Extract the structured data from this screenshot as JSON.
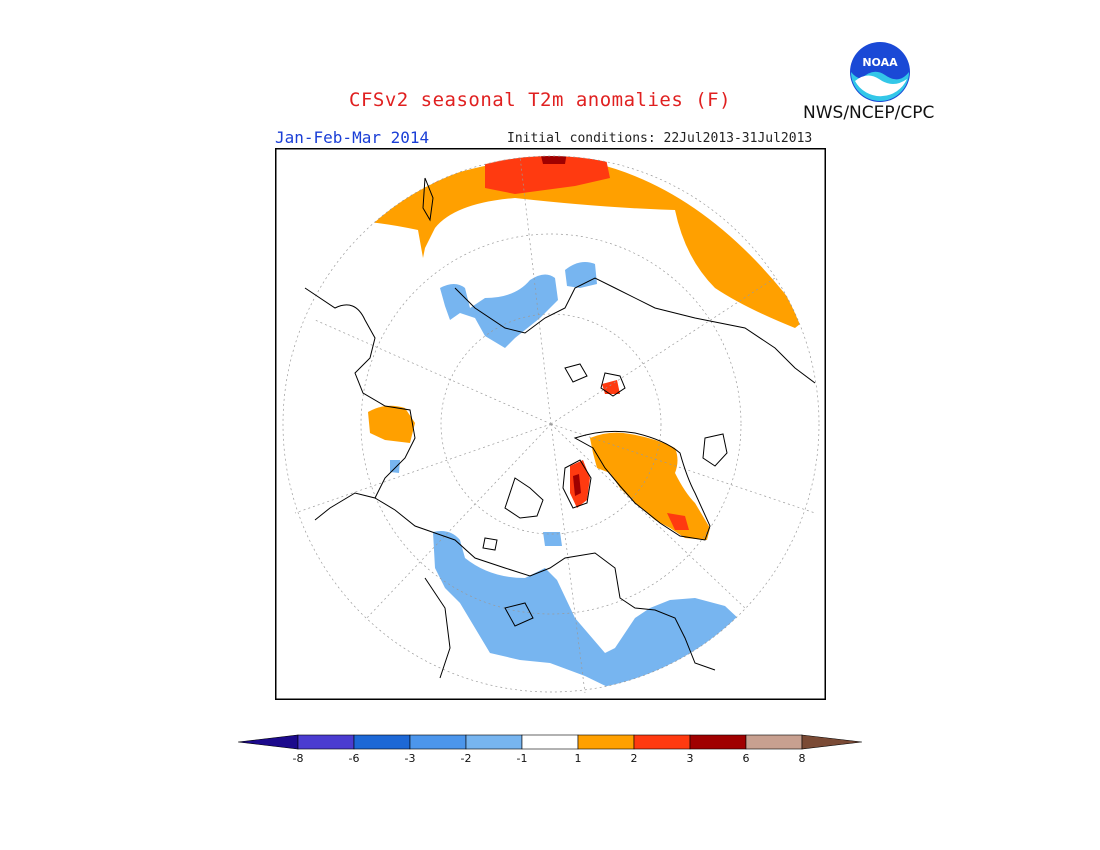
{
  "header": {
    "title": "CFSv2 seasonal T2m anomalies (F)",
    "season": "Jan-Feb-Mar 2014",
    "initial_conditions": "Initial conditions: 22Jul2013-31Jul2013",
    "agency": "NWS/NCEP/CPC",
    "logo_text": "NOAA"
  },
  "colors": {
    "title": "#e02020",
    "season": "#1a3ed6",
    "cold_light": "#77b5f0",
    "warm_1": "#ffa000",
    "warm_2": "#ff3a10",
    "warm_3": "#a00000"
  },
  "legend": {
    "bins": [
      {
        "color": "#1c0a8c"
      },
      {
        "color": "#4b3cd0"
      },
      {
        "color": "#1d68d6"
      },
      {
        "color": "#4c96ec"
      },
      {
        "color": "#77b5f0"
      },
      {
        "color": "#ffffff"
      },
      {
        "color": "#ffa000"
      },
      {
        "color": "#ff3a10"
      },
      {
        "color": "#a00000"
      },
      {
        "color": "#c8a090"
      },
      {
        "color": "#7a4a35"
      }
    ],
    "ticks": [
      "-8",
      "-6",
      "-3",
      "-2",
      "-1",
      "1",
      "2",
      "3",
      "6",
      "8"
    ]
  }
}
